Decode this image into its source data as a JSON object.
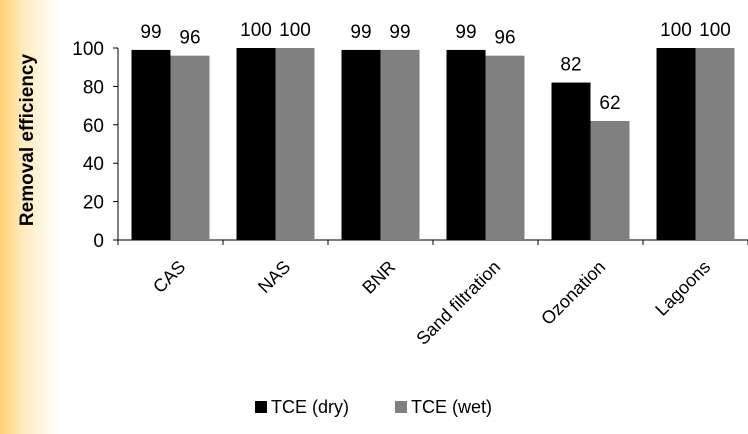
{
  "chart_data": {
    "type": "bar",
    "title": "",
    "xlabel": "",
    "ylabel": "Removal efficiency",
    "ylim": [
      0,
      100
    ],
    "yticks": [
      0,
      20,
      40,
      60,
      80,
      100
    ],
    "grid": false,
    "legend_position": "bottom",
    "categories": [
      "CAS",
      "NAS",
      "BNR",
      "Sand filtration",
      "Ozonation",
      "Lagoons"
    ],
    "series": [
      {
        "name": "TCE (dry)",
        "color": "#000000",
        "values": [
          99,
          100,
          99,
          99,
          82,
          100
        ]
      },
      {
        "name": "TCE (wet)",
        "color": "#808080",
        "values": [
          96,
          100,
          99,
          96,
          62,
          100
        ]
      }
    ]
  }
}
